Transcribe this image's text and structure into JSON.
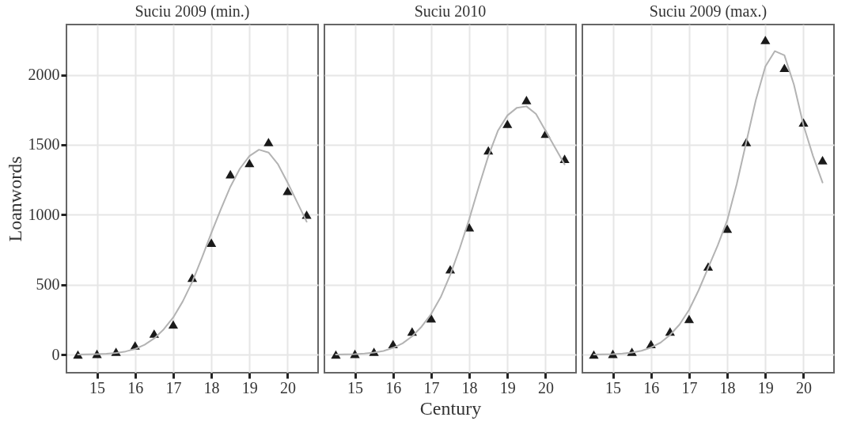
{
  "chart_data": [
    {
      "type": "scatter",
      "title": "Suciu 2009 (min.)",
      "ylabel": "Loanwords",
      "xlim": [
        14.2,
        20.8
      ],
      "xticks": [
        15,
        16,
        17,
        18,
        19,
        20
      ],
      "ylim": [
        -130,
        2360
      ],
      "yticks": [
        0,
        500,
        1000,
        1500,
        2000
      ],
      "grid": true,
      "series": [
        {
          "marker": "triangle",
          "color": "#1a1a1a",
          "x": [
            14.5,
            15,
            15.5,
            16,
            16.5,
            17,
            17.5,
            18,
            18.5,
            19,
            19.5,
            20,
            20.5
          ],
          "values": [
            0,
            5,
            20,
            65,
            150,
            215,
            550,
            800,
            1290,
            1370,
            1520,
            1170,
            1000
          ]
        },
        {
          "type": "line",
          "color": "#b3b3b3",
          "x": [
            14.5,
            14.75,
            15,
            15.25,
            15.5,
            15.75,
            16,
            16.25,
            16.5,
            16.75,
            17,
            17.25,
            17.5,
            17.75,
            18,
            18.25,
            18.5,
            18.75,
            19,
            19.25,
            19.5,
            19.75,
            20,
            20.25,
            20.5
          ],
          "values": [
            0,
            1,
            3,
            6,
            12,
            22,
            40,
            70,
            115,
            180,
            265,
            380,
            520,
            690,
            870,
            1040,
            1200,
            1330,
            1420,
            1465,
            1445,
            1360,
            1230,
            1090,
            950
          ]
        }
      ]
    },
    {
      "type": "scatter",
      "title": "Suciu 2010",
      "xlabel": "Century",
      "xlim": [
        14.2,
        20.8
      ],
      "xticks": [
        15,
        16,
        17,
        18,
        19,
        20
      ],
      "ylim": [
        -130,
        2360
      ],
      "yticks": [
        0,
        500,
        1000,
        1500,
        2000
      ],
      "tick_labels": "x",
      "grid": true,
      "series": [
        {
          "marker": "triangle",
          "color": "#1a1a1a",
          "x": [
            14.5,
            15,
            15.5,
            16,
            16.5,
            17,
            17.5,
            18,
            18.5,
            19,
            19.5,
            20,
            20.5
          ],
          "values": [
            0,
            5,
            20,
            75,
            165,
            260,
            610,
            910,
            1460,
            1650,
            1820,
            1580,
            1400
          ]
        },
        {
          "type": "line",
          "color": "#b3b3b3",
          "x": [
            14.5,
            14.75,
            15,
            15.25,
            15.5,
            15.75,
            16,
            16.25,
            16.5,
            16.75,
            17,
            17.25,
            17.5,
            17.75,
            18,
            18.25,
            18.5,
            18.75,
            19,
            19.25,
            19.5,
            19.75,
            20,
            20.25,
            20.5
          ],
          "values": [
            0,
            1,
            3,
            7,
            14,
            26,
            48,
            80,
            130,
            200,
            290,
            410,
            570,
            760,
            970,
            1200,
            1420,
            1600,
            1710,
            1765,
            1775,
            1720,
            1600,
            1480,
            1360
          ]
        }
      ]
    },
    {
      "type": "scatter",
      "title": "Suciu 2009 (max.)",
      "xlim": [
        14.2,
        20.8
      ],
      "xticks": [
        15,
        16,
        17,
        18,
        19,
        20
      ],
      "ylim": [
        -130,
        2360
      ],
      "yticks": [
        0,
        500,
        1000,
        1500,
        2000
      ],
      "tick_labels": "x",
      "grid": true,
      "series": [
        {
          "marker": "triangle",
          "color": "#1a1a1a",
          "x": [
            14.5,
            15,
            15.5,
            16,
            16.5,
            17,
            17.5,
            18,
            18.5,
            19,
            19.5,
            20,
            20.5
          ],
          "values": [
            0,
            5,
            20,
            75,
            165,
            255,
            630,
            900,
            1520,
            2250,
            2050,
            1660,
            1390
          ]
        },
        {
          "type": "line",
          "color": "#b3b3b3",
          "x": [
            14.5,
            14.75,
            15,
            15.25,
            15.5,
            15.75,
            16,
            16.25,
            16.5,
            16.75,
            17,
            17.25,
            17.5,
            17.75,
            18,
            18.25,
            18.5,
            18.75,
            19,
            19.25,
            19.5,
            19.75,
            20,
            20.25,
            20.5
          ],
          "values": [
            0,
            1,
            3,
            7,
            14,
            27,
            50,
            85,
            140,
            215,
            320,
            460,
            620,
            780,
            960,
            1220,
            1520,
            1820,
            2060,
            2170,
            2140,
            1930,
            1640,
            1420,
            1230
          ]
        }
      ]
    }
  ]
}
